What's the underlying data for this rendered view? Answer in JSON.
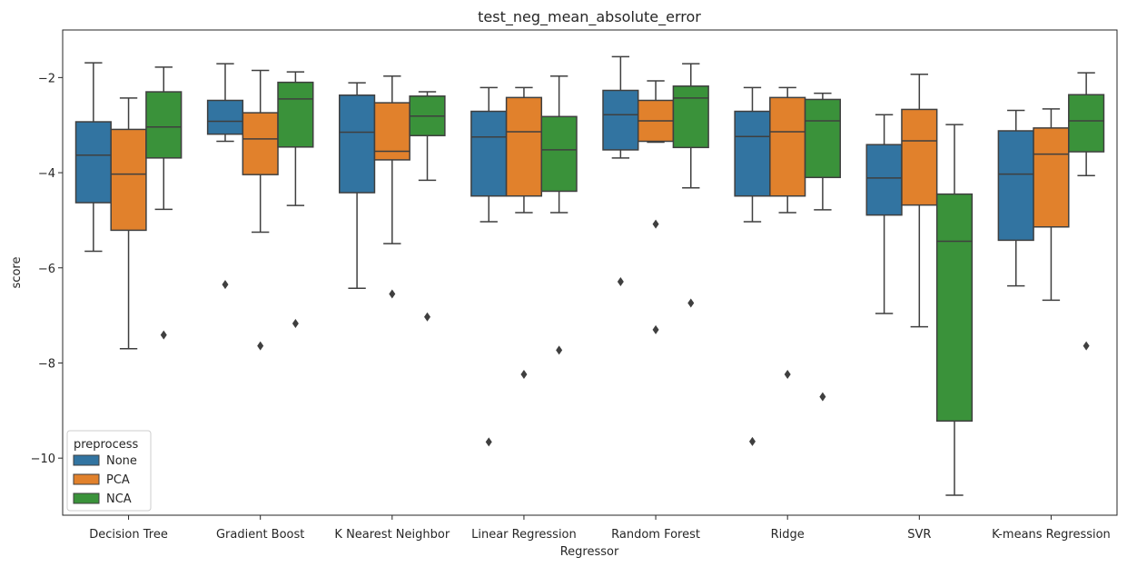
{
  "chart_data": {
    "type": "box",
    "title": "test_neg_mean_absolute_error",
    "xlabel": "Regressor",
    "ylabel": "score",
    "ylim": [
      -11.2,
      -1.0
    ],
    "yticks": [
      -2,
      -4,
      -6,
      -8,
      -10
    ],
    "legend": {
      "title": "preprocess",
      "placement": "bottom-left"
    },
    "categories": [
      "Decision Tree",
      "Gradient Boost",
      "K Nearest Neighbor",
      "Linear Regression",
      "Random Forest",
      "Ridge",
      "SVR",
      "K-means Regression"
    ],
    "series": [
      {
        "name": "None",
        "color": "#3274a1",
        "boxes": [
          {
            "whislo": -5.65,
            "q1": -4.63,
            "med": -3.63,
            "q3": -2.93,
            "whishi": -1.69,
            "fliers": []
          },
          {
            "whislo": -3.34,
            "q1": -3.19,
            "med": -2.92,
            "q3": -2.48,
            "whishi": -1.71,
            "fliers": [
              -6.35
            ]
          },
          {
            "whislo": -6.43,
            "q1": -4.42,
            "med": -3.15,
            "q3": -2.37,
            "whishi": -2.11,
            "fliers": []
          },
          {
            "whislo": -5.03,
            "q1": -4.49,
            "med": -3.25,
            "q3": -2.71,
            "whishi": -2.21,
            "fliers": [
              -9.66
            ]
          },
          {
            "whislo": -3.69,
            "q1": -3.52,
            "med": -2.78,
            "q3": -2.27,
            "whishi": -1.56,
            "fliers": [
              -6.29
            ]
          },
          {
            "whislo": -5.03,
            "q1": -4.49,
            "med": -3.24,
            "q3": -2.71,
            "whishi": -2.21,
            "fliers": [
              -9.65
            ]
          },
          {
            "whislo": -6.96,
            "q1": -4.89,
            "med": -4.11,
            "q3": -3.41,
            "whishi": -2.78,
            "fliers": []
          },
          {
            "whislo": -6.38,
            "q1": -5.42,
            "med": -4.03,
            "q3": -3.12,
            "whishi": -2.69,
            "fliers": []
          }
        ]
      },
      {
        "name": "PCA",
        "color": "#e1812c",
        "boxes": [
          {
            "whislo": -7.7,
            "q1": -5.21,
            "med": -4.03,
            "q3": -3.09,
            "whishi": -2.43,
            "fliers": []
          },
          {
            "whislo": -5.25,
            "q1": -4.04,
            "med": -3.29,
            "q3": -2.74,
            "whishi": -1.85,
            "fliers": [
              -7.64
            ]
          },
          {
            "whislo": -5.49,
            "q1": -3.73,
            "med": -3.55,
            "q3": -2.53,
            "whishi": -1.97,
            "fliers": [
              -6.55
            ]
          },
          {
            "whislo": -4.84,
            "q1": -4.49,
            "med": -3.14,
            "q3": -2.42,
            "whishi": -2.21,
            "fliers": [
              -8.24
            ]
          },
          {
            "whislo": -3.36,
            "q1": -3.34,
            "med": -2.91,
            "q3": -2.48,
            "whishi": -2.07,
            "fliers": [
              -5.08,
              -7.3
            ]
          },
          {
            "whislo": -4.84,
            "q1": -4.49,
            "med": -3.14,
            "q3": -2.42,
            "whishi": -2.21,
            "fliers": [
              -8.24
            ]
          },
          {
            "whislo": -7.24,
            "q1": -4.68,
            "med": -3.33,
            "q3": -2.67,
            "whishi": -1.93,
            "fliers": []
          },
          {
            "whislo": -6.68,
            "q1": -5.14,
            "med": -3.61,
            "q3": -3.06,
            "whishi": -2.66,
            "fliers": []
          }
        ]
      },
      {
        "name": "NCA",
        "color": "#3a923a",
        "boxes": [
          {
            "whislo": -4.77,
            "q1": -3.69,
            "med": -3.04,
            "q3": -2.3,
            "whishi": -1.78,
            "fliers": [
              -7.41
            ]
          },
          {
            "whislo": -4.69,
            "q1": -3.46,
            "med": -2.45,
            "q3": -2.1,
            "whishi": -1.88,
            "fliers": [
              -7.17
            ]
          },
          {
            "whislo": -4.16,
            "q1": -3.22,
            "med": -2.81,
            "q3": -2.39,
            "whishi": -2.3,
            "fliers": [
              -7.03
            ]
          },
          {
            "whislo": -4.84,
            "q1": -4.39,
            "med": -3.52,
            "q3": -2.82,
            "whishi": -1.97,
            "fliers": [
              -7.73
            ]
          },
          {
            "whislo": -4.32,
            "q1": -3.47,
            "med": -2.43,
            "q3": -2.18,
            "whishi": -1.71,
            "fliers": [
              -6.74
            ]
          },
          {
            "whislo": -4.78,
            "q1": -4.1,
            "med": -2.91,
            "q3": -2.46,
            "whishi": -2.33,
            "fliers": [
              -8.71
            ]
          },
          {
            "whislo": -10.78,
            "q1": -9.22,
            "med": -5.44,
            "q3": -4.45,
            "whishi": -2.99,
            "fliers": []
          },
          {
            "whislo": -4.06,
            "q1": -3.56,
            "med": -2.91,
            "q3": -2.36,
            "whishi": -1.9,
            "fliers": [
              -7.64
            ]
          }
        ]
      }
    ]
  }
}
